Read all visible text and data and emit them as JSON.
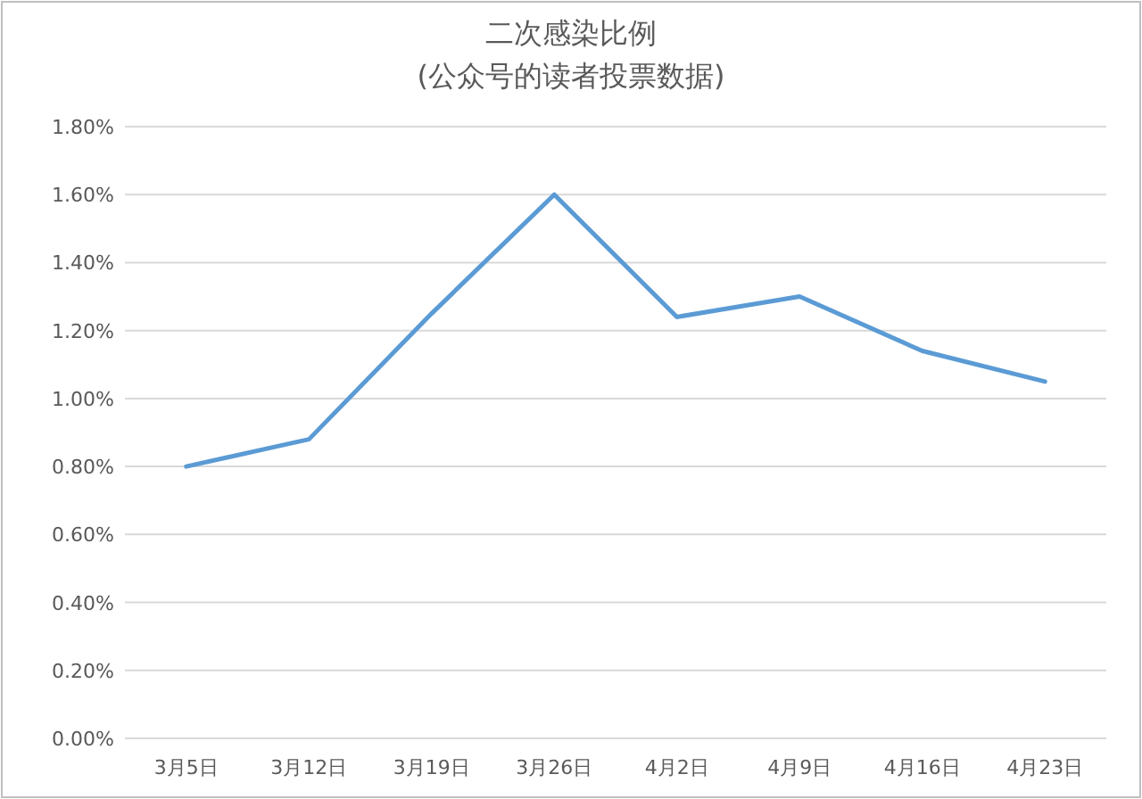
{
  "chart_data": {
    "type": "line",
    "title": "二次感染比例",
    "subtitle": "(公众号的读者投票数据)",
    "categories": [
      "3月5日",
      "3月12日",
      "3月19日",
      "3月26日",
      "4月2日",
      "4月9日",
      "4月16日",
      "4月23日"
    ],
    "series": [
      {
        "color": "#5b9bd5",
        "values": [
          0.8,
          0.88,
          1.25,
          1.6,
          1.24,
          1.3,
          1.14,
          1.05
        ]
      }
    ],
    "ylim": [
      0,
      1.8
    ],
    "yticks": [
      {
        "value": 0,
        "label": "0.00%"
      },
      {
        "value": 0.2,
        "label": "0.20%"
      },
      {
        "value": 0.4,
        "label": "0.40%"
      },
      {
        "value": 0.6,
        "label": "0.60%"
      },
      {
        "value": 0.8,
        "label": "0.80%"
      },
      {
        "value": 1.0,
        "label": "1.00%"
      },
      {
        "value": 1.2,
        "label": "1.20%"
      },
      {
        "value": 1.4,
        "label": "1.40%"
      },
      {
        "value": 1.6,
        "label": "1.60%"
      },
      {
        "value": 1.8,
        "label": "1.80%"
      }
    ],
    "grid": "y",
    "marker": "none",
    "line_style": "solid"
  }
}
